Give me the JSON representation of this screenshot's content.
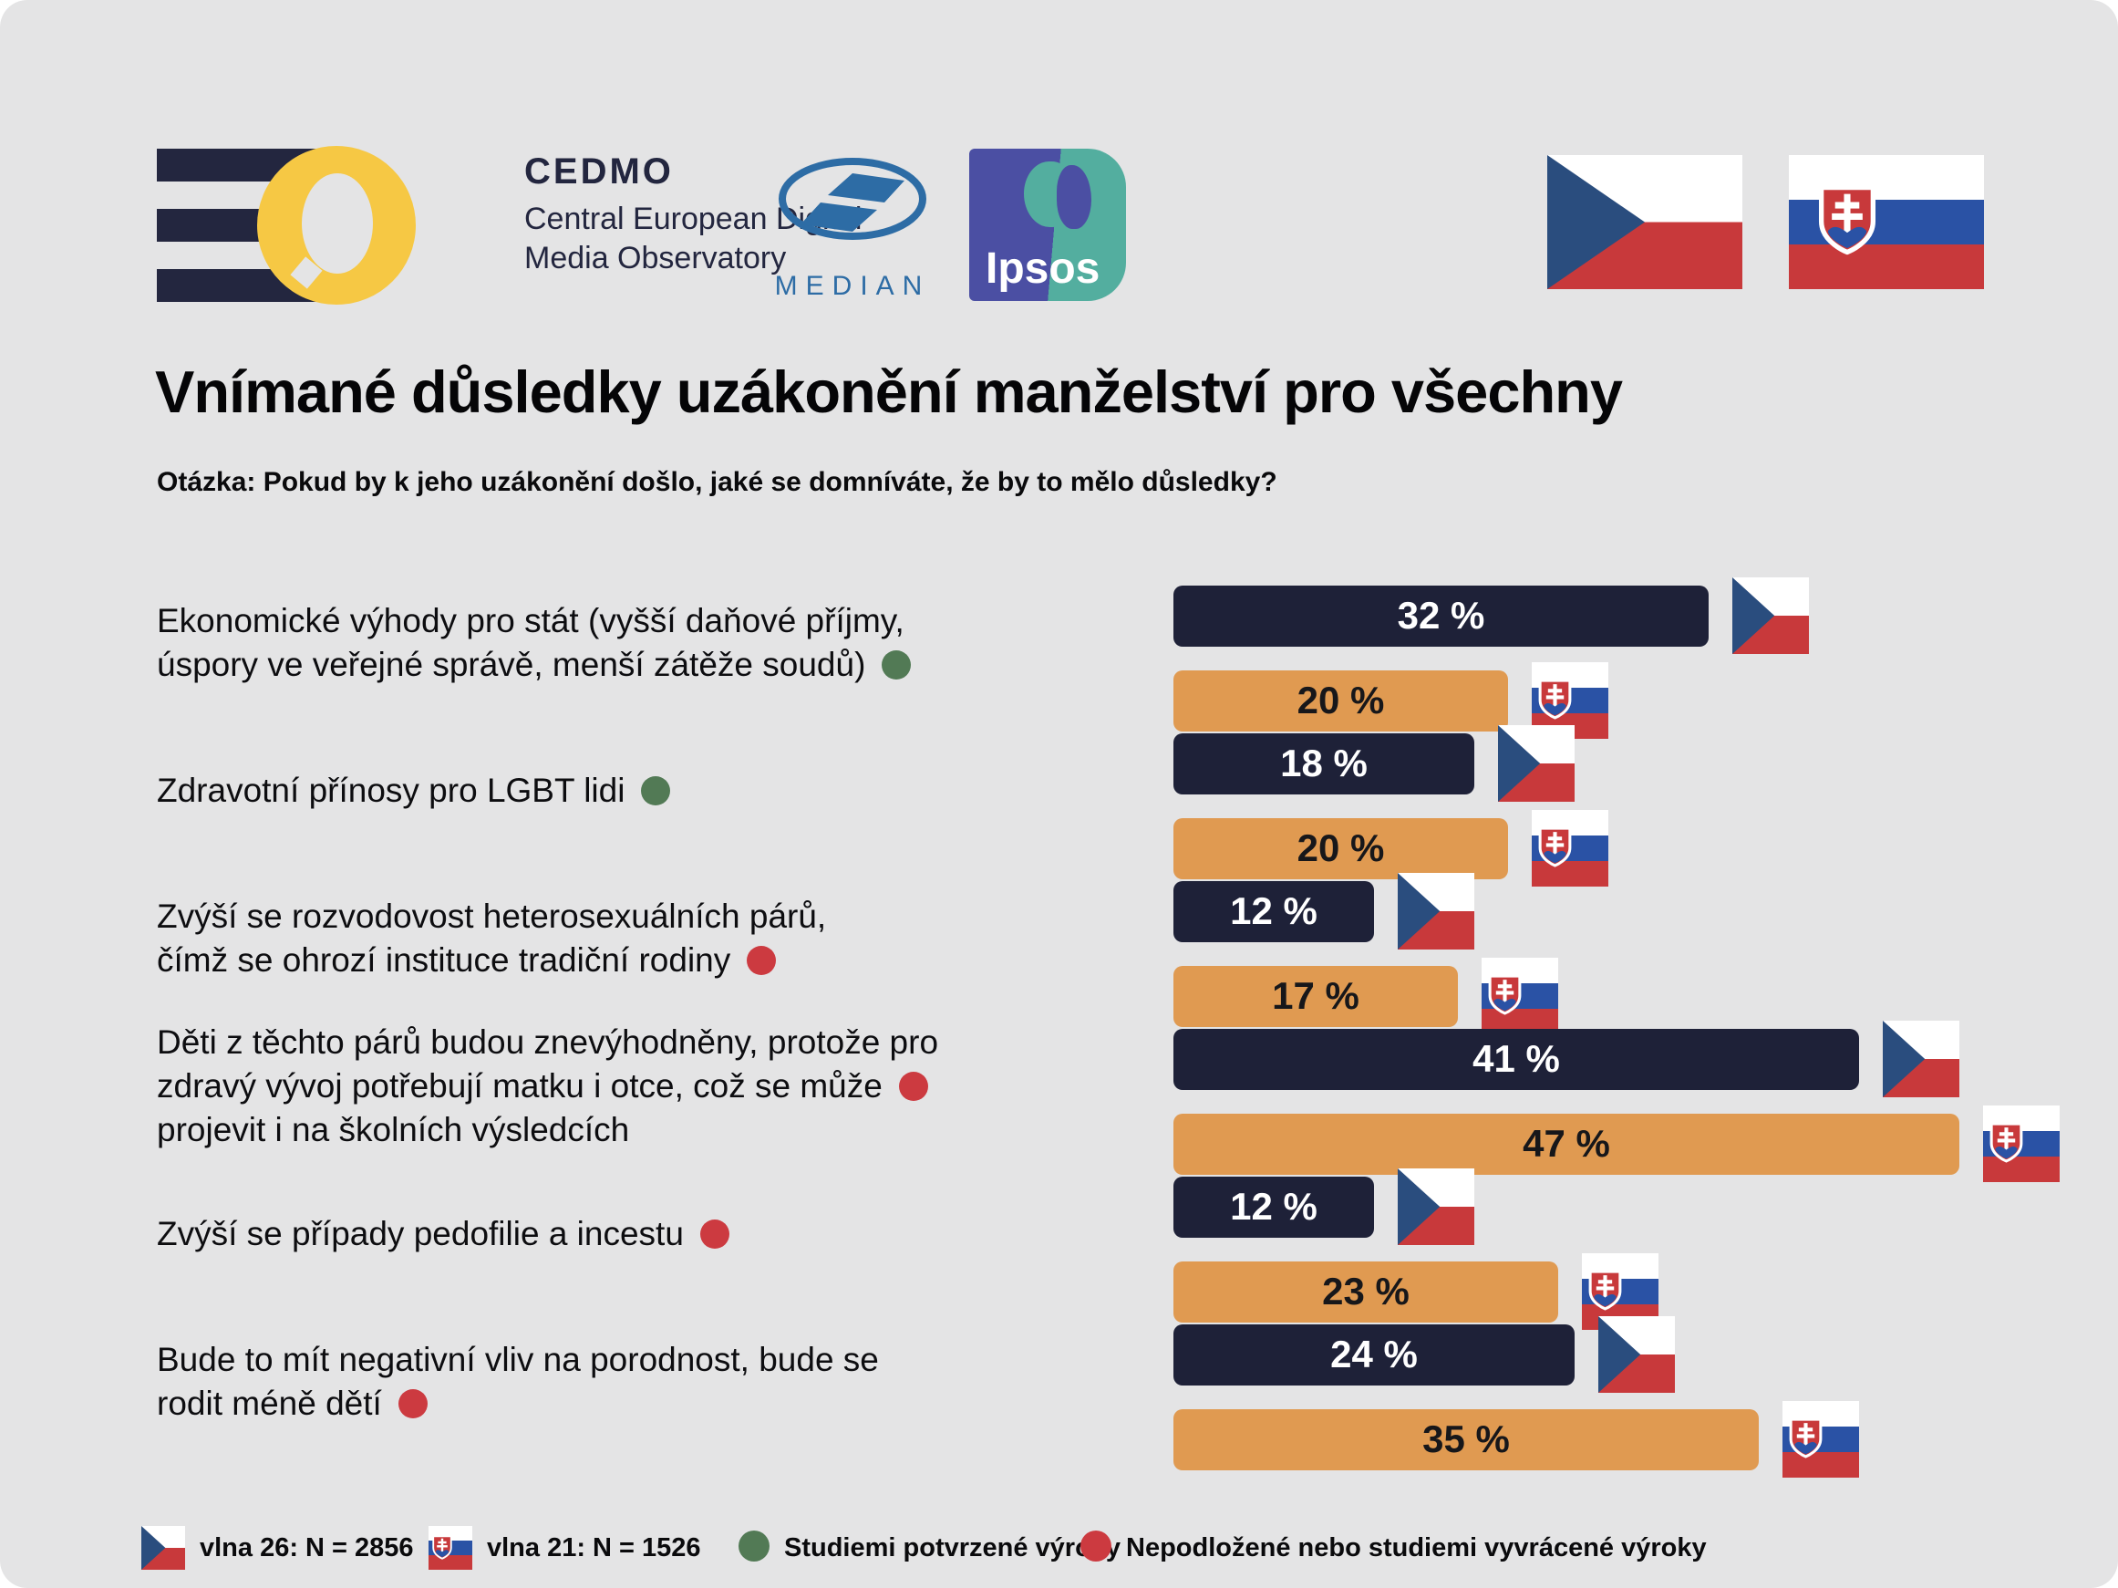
{
  "header": {
    "cedmo": {
      "name": "CEDMO",
      "line1": "Central European Digital",
      "line2": "Media Observatory"
    },
    "median": {
      "label": "MEDIAN"
    },
    "ipsos": {
      "label": "Ipsos"
    }
  },
  "title": "Vnímané důsledky uzákonění manželství pro všechny",
  "subtitle": "Otázka: Pokud by k jeho uzákonění došlo, jaké se domníváte, že by to mělo důsledky?",
  "colors": {
    "background": "#e4e4e5",
    "bar_czech": "#1e2138",
    "bar_slovak": "#e09a51",
    "dot_confirmed": "#527a55",
    "dot_refuted": "#cc3a40",
    "czech_flag_blue": "#2a4d7e",
    "flag_red": "#c8393b",
    "slovak_flag_blue": "#2a52a5"
  },
  "chart_data": {
    "type": "bar",
    "orientation": "horizontal",
    "unit": "%",
    "title": "Vnímané důsledky uzákonění manželství pro všechny",
    "categories": [
      "Ekonomické výhody pro stát (vyšší daňové příjmy, úspory ve veřejné správě, menší zátěže soudů)",
      "Zdravotní přínosy pro LGBT lidi",
      "Zvýší se rozvodovost heterosexuálních párů, čímž se ohrozí instituce tradiční rodiny",
      "Děti z těchto párů budou znevýhodněny, protože pro zdravý vývoj potřebují matku i otce, což se může projevit i na školních výsledcích",
      "Zvýší se případy pedofilie a incestu",
      "Bude to mít negativní vliv na porodnost, bude se rodit méně dětí"
    ],
    "claim_status": [
      "confirmed",
      "confirmed",
      "refuted",
      "refuted",
      "refuted",
      "refuted"
    ],
    "series": [
      {
        "name": "Česko — vlna 26: N = 2856",
        "values": [
          32,
          18,
          12,
          41,
          12,
          24
        ]
      },
      {
        "name": "Slovensko — vlna 21: N = 1526",
        "values": [
          20,
          20,
          17,
          47,
          23,
          35
        ]
      }
    ],
    "xlim": [
      0,
      50
    ],
    "grid": false,
    "legend_position": "bottom"
  },
  "rows": [
    {
      "label_lines": [
        "Ekonomické výhody pro stát (vyšší daňové příjmy,",
        "úspory ve veřejné správě, menší zátěže soudů)"
      ],
      "claim_type": "confirmed",
      "cz": 32,
      "sk": 20,
      "cz_label": "32 %",
      "sk_label": "20 %"
    },
    {
      "label_lines": [
        "Zdravotní přínosy pro LGBT lidi"
      ],
      "claim_type": "confirmed",
      "cz": 18,
      "sk": 20,
      "cz_label": "18 %",
      "sk_label": "20 %"
    },
    {
      "label_lines": [
        "Zvýší se rozvodovost heterosexuálních párů,",
        "čímž se ohrozí instituce tradiční rodiny"
      ],
      "claim_type": "refuted",
      "cz": 12,
      "sk": 17,
      "cz_label": "12 %",
      "sk_label": "17 %"
    },
    {
      "label_lines": [
        "Děti z těchto párů budou znevýhodněny, protože pro",
        "zdravý vývoj potřebují matku i otce, což se může",
        "projevit i na školních výsledcích"
      ],
      "claim_type": "refuted",
      "cz": 41,
      "sk": 47,
      "cz_label": "41 %",
      "sk_label": "47 %"
    },
    {
      "label_lines": [
        "Zvýší se případy pedofilie a incestu"
      ],
      "claim_type": "refuted",
      "cz": 12,
      "sk": 23,
      "cz_label": "12 %",
      "sk_label": "23 %"
    },
    {
      "label_lines": [
        "Bude to mít negativní vliv na porodnost, bude se",
        "rodit méně dětí"
      ],
      "claim_type": "refuted",
      "cz": 24,
      "sk": 35,
      "cz_label": "24 %",
      "sk_label": "35 %"
    }
  ],
  "legend": {
    "wave_cz": "vlna 26: N = 2856",
    "wave_sk": "vlna 21: N = 1526",
    "confirmed": "Studiemi potvrzené výroky",
    "refuted": "Nepodložené nebo studiemi vyvrácené výroky"
  }
}
